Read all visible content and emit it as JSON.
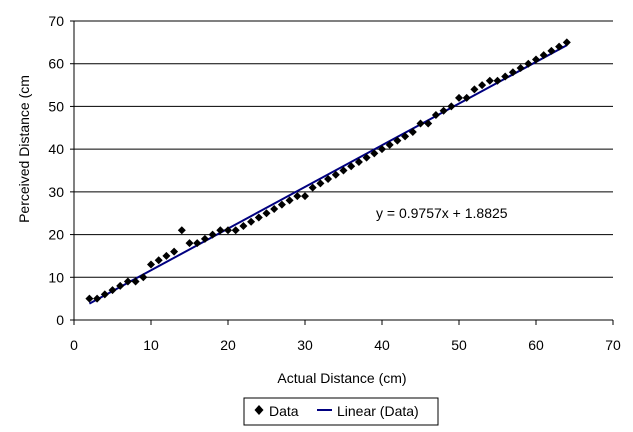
{
  "chart_data": {
    "type": "scatter",
    "title": "",
    "xlabel": "Actual Distance (cm)",
    "ylabel": "Perceived Distance (cm",
    "xlim": [
      0,
      70
    ],
    "ylim": [
      0,
      70
    ],
    "x_ticks": [
      "0",
      "10",
      "20",
      "30",
      "40",
      "50",
      "60",
      "70"
    ],
    "y_ticks": [
      "0",
      "10",
      "20",
      "30",
      "40",
      "50",
      "60",
      "70"
    ],
    "grid": "horizontal",
    "legend_position": "bottom",
    "series": [
      {
        "name": "Data",
        "marker": "diamond",
        "color": "#000000",
        "points": [
          [
            2,
            5
          ],
          [
            3,
            5
          ],
          [
            4,
            6
          ],
          [
            5,
            7
          ],
          [
            6,
            8
          ],
          [
            7,
            9
          ],
          [
            8,
            9
          ],
          [
            9,
            10
          ],
          [
            10,
            13
          ],
          [
            11,
            14
          ],
          [
            12,
            15
          ],
          [
            13,
            16
          ],
          [
            14,
            21
          ],
          [
            15,
            18
          ],
          [
            16,
            18
          ],
          [
            17,
            19
          ],
          [
            18,
            20
          ],
          [
            19,
            21
          ],
          [
            20,
            21
          ],
          [
            21,
            21
          ],
          [
            22,
            22
          ],
          [
            23,
            23
          ],
          [
            24,
            24
          ],
          [
            25,
            25
          ],
          [
            26,
            26
          ],
          [
            27,
            27
          ],
          [
            28,
            28
          ],
          [
            29,
            29
          ],
          [
            30,
            29
          ],
          [
            31,
            31
          ],
          [
            32,
            32
          ],
          [
            33,
            33
          ],
          [
            34,
            34
          ],
          [
            35,
            35
          ],
          [
            36,
            36
          ],
          [
            37,
            37
          ],
          [
            38,
            38
          ],
          [
            39,
            39
          ],
          [
            40,
            40
          ],
          [
            41,
            41
          ],
          [
            42,
            42
          ],
          [
            43,
            43
          ],
          [
            44,
            44
          ],
          [
            45,
            46
          ],
          [
            46,
            46
          ],
          [
            47,
            48
          ],
          [
            48,
            49
          ],
          [
            49,
            50
          ],
          [
            50,
            52
          ],
          [
            51,
            52
          ],
          [
            52,
            54
          ],
          [
            53,
            55
          ],
          [
            54,
            56
          ],
          [
            55,
            56
          ],
          [
            56,
            57
          ],
          [
            57,
            58
          ],
          [
            58,
            59
          ],
          [
            59,
            60
          ],
          [
            60,
            61
          ],
          [
            61,
            62
          ],
          [
            62,
            63
          ],
          [
            63,
            64
          ],
          [
            64,
            65
          ]
        ]
      },
      {
        "name": "Linear (Data)",
        "type": "line",
        "color": "#000080",
        "slope": 0.9757,
        "intercept": 1.8825,
        "x_range": [
          2,
          64
        ]
      }
    ],
    "annotation": "y = 0.9757x + 1.8825"
  }
}
